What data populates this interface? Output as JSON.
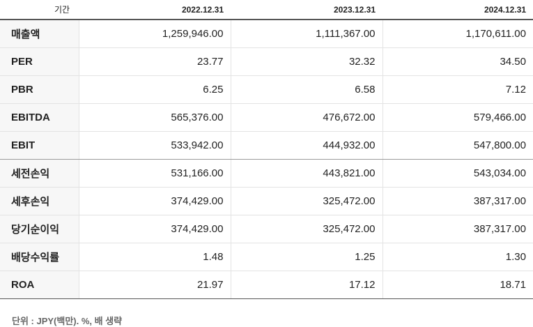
{
  "table": {
    "header": {
      "label": "기간",
      "periods": [
        "2022.12.31",
        "2023.12.31",
        "2024.12.31"
      ]
    },
    "rows": [
      {
        "label": "매출액",
        "values": [
          "1,259,946.00",
          "1,111,367.00",
          "1,170,611.00"
        ]
      },
      {
        "label": "PER",
        "values": [
          "23.77",
          "32.32",
          "34.50"
        ]
      },
      {
        "label": "PBR",
        "values": [
          "6.25",
          "6.58",
          "7.12"
        ]
      },
      {
        "label": "EBITDA",
        "values": [
          "565,376.00",
          "476,672.00",
          "579,466.00"
        ]
      },
      {
        "label": "EBIT",
        "values": [
          "533,942.00",
          "444,932.00",
          "547,800.00"
        ]
      },
      {
        "label": "세전손익",
        "values": [
          "531,166.00",
          "443,821.00",
          "543,034.00"
        ]
      },
      {
        "label": "세후손익",
        "values": [
          "374,429.00",
          "325,472.00",
          "387,317.00"
        ]
      },
      {
        "label": "당기순이익",
        "values": [
          "374,429.00",
          "325,472.00",
          "387,317.00"
        ]
      },
      {
        "label": "배당수익률",
        "values": [
          "1.48",
          "1.25",
          "1.30"
        ]
      },
      {
        "label": "ROA",
        "values": [
          "21.97",
          "17.12",
          "18.71"
        ]
      }
    ]
  },
  "footnote": "단위 : JPY(백만). %, 배 생략"
}
